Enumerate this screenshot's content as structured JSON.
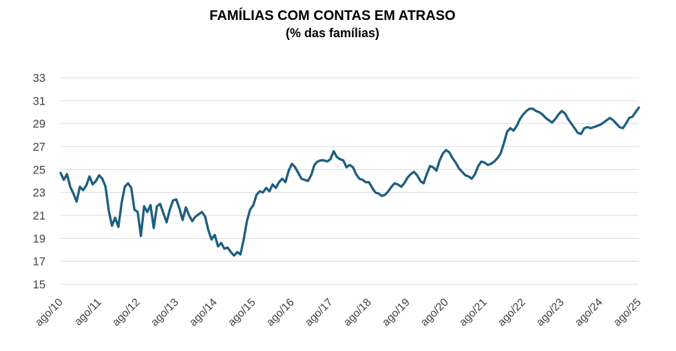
{
  "chart_data": {
    "type": "line",
    "title": "FAMÍLIAS COM CONTAS EM ATRASO",
    "subtitle": "(% das famílias)",
    "xlabel": "",
    "ylabel": "",
    "ylim": [
      15,
      33
    ],
    "y_ticks": [
      15,
      17,
      19,
      21,
      23,
      25,
      27,
      29,
      31,
      33
    ],
    "x_tick_labels": [
      "ago/10",
      "ago/11",
      "ago/12",
      "ago/13",
      "ago/14",
      "ago/15",
      "ago/16",
      "ago/17",
      "ago/18",
      "ago/19",
      "ago/20",
      "ago/21",
      "ago/22",
      "ago/23",
      "ago/24",
      "ago/25"
    ],
    "points_per_x_tick": 12,
    "frequency": "monthly",
    "grid": "horizontal",
    "legend_position": "none",
    "colors": {
      "line": "#1e5f80",
      "gridline": "#d9d9d9",
      "tick_text": "#3f3f3f",
      "title_text": "#000000",
      "background": "#ffffff"
    },
    "series": [
      {
        "name": "FAMÍLIAS COM CONTAS EM ATRASO (% das famílias)",
        "start_label": "ago/10",
        "end_label": "ago/25",
        "values": [
          24.7,
          24.1,
          24.6,
          23.5,
          22.9,
          22.2,
          23.5,
          23.2,
          23.6,
          24.4,
          23.7,
          24.0,
          24.5,
          24.2,
          23.5,
          21.4,
          20.1,
          20.8,
          20.0,
          22.1,
          23.5,
          23.8,
          23.4,
          21.5,
          21.3,
          19.2,
          21.8,
          21.3,
          21.9,
          19.9,
          21.8,
          22.0,
          21.2,
          20.4,
          21.5,
          22.3,
          22.4,
          21.6,
          20.6,
          21.7,
          21.0,
          20.5,
          20.9,
          21.1,
          21.3,
          20.9,
          19.7,
          18.9,
          19.3,
          18.3,
          18.6,
          18.1,
          18.2,
          17.8,
          17.5,
          17.8,
          17.6,
          18.9,
          20.5,
          21.5,
          21.9,
          22.8,
          23.1,
          23.0,
          23.4,
          23.1,
          23.7,
          23.4,
          23.9,
          24.2,
          23.9,
          24.9,
          25.5,
          25.2,
          24.7,
          24.2,
          24.1,
          24.0,
          24.5,
          25.4,
          25.7,
          25.8,
          25.8,
          25.7,
          25.9,
          26.6,
          26.1,
          25.9,
          25.8,
          25.2,
          25.4,
          25.2,
          24.6,
          24.2,
          24.1,
          23.9,
          23.9,
          23.4,
          23.0,
          22.9,
          22.7,
          22.8,
          23.1,
          23.5,
          23.8,
          23.7,
          23.5,
          23.8,
          24.3,
          24.6,
          24.8,
          24.5,
          24.0,
          23.8,
          24.6,
          25.3,
          25.2,
          24.9,
          25.8,
          26.4,
          26.7,
          26.5,
          26.0,
          25.6,
          25.1,
          24.8,
          24.5,
          24.4,
          24.2,
          24.6,
          25.3,
          25.7,
          25.6,
          25.4,
          25.5,
          25.7,
          26.0,
          26.4,
          27.3,
          28.3,
          28.6,
          28.4,
          28.8,
          29.4,
          29.8,
          30.1,
          30.3,
          30.3,
          30.1,
          30.0,
          29.8,
          29.5,
          29.3,
          29.1,
          29.4,
          29.8,
          30.1,
          29.9,
          29.4,
          29.0,
          28.6,
          28.2,
          28.1,
          28.6,
          28.7,
          28.6,
          28.7,
          28.8,
          28.9,
          29.1,
          29.3,
          29.5,
          29.3,
          29.0,
          28.7,
          28.6,
          29.0,
          29.5,
          29.6,
          30.0,
          30.4
        ]
      }
    ]
  }
}
